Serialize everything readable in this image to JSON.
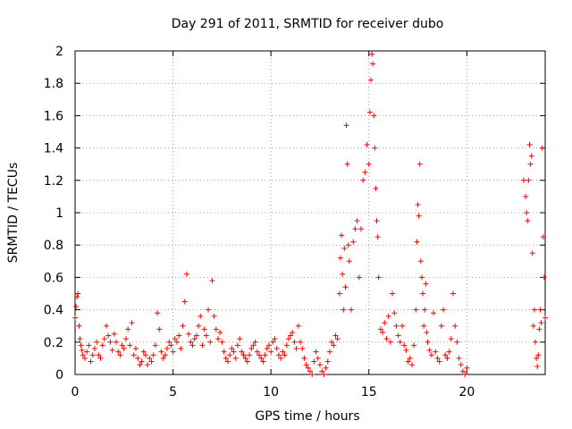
{
  "chart_data": {
    "type": "scatter",
    "title": "Day 291 of 2011, SRMTID for receiver dubo",
    "xlabel": "GPS time / hours",
    "ylabel": "SRMTID / TECUs",
    "xlim": [
      0,
      24
    ],
    "ylim": [
      0,
      2
    ],
    "grid": true,
    "marker": "+",
    "color": "#ff0000",
    "x_ticks": [
      {
        "value": 0,
        "label": "0"
      },
      {
        "value": 5,
        "label": "5"
      },
      {
        "value": 10,
        "label": "10"
      },
      {
        "value": 15,
        "label": "15"
      },
      {
        "value": 20,
        "label": "20"
      }
    ],
    "y_ticks": [
      {
        "value": 0,
        "label": "0"
      },
      {
        "value": 0.2,
        "label": "0.2"
      },
      {
        "value": 0.4,
        "label": "0.4"
      },
      {
        "value": 0.6,
        "label": "0.6"
      },
      {
        "value": 0.8,
        "label": "0.8"
      },
      {
        "value": 1.0,
        "label": "1"
      },
      {
        "value": 1.2,
        "label": "1.2"
      },
      {
        "value": 1.4,
        "label": "1.4"
      },
      {
        "value": 1.6,
        "label": "1.6"
      },
      {
        "value": 1.8,
        "label": "1.8"
      },
      {
        "value": 2.0,
        "label": "2"
      }
    ],
    "series": [
      {
        "name": "SRMTID",
        "x": [
          0.0,
          0.05,
          0.1,
          0.15,
          0.2,
          0.25,
          0.3,
          0.35,
          0.4,
          0.5,
          0.6,
          0.7,
          0.8,
          0.9,
          1.0,
          1.1,
          1.2,
          1.3,
          1.4,
          1.5,
          1.6,
          1.7,
          1.8,
          1.9,
          2.0,
          2.1,
          2.2,
          2.3,
          2.4,
          2.5,
          2.6,
          2.7,
          2.8,
          2.9,
          3.0,
          3.1,
          3.2,
          3.3,
          3.4,
          3.5,
          3.6,
          3.7,
          3.8,
          3.9,
          4.0,
          4.1,
          4.2,
          4.3,
          4.4,
          4.5,
          4.6,
          4.7,
          4.8,
          4.9,
          5.0,
          5.1,
          5.2,
          5.3,
          5.4,
          5.5,
          5.6,
          5.7,
          5.8,
          5.9,
          6.0,
          6.1,
          6.2,
          6.3,
          6.4,
          6.5,
          6.6,
          6.7,
          6.8,
          6.9,
          7.0,
          7.1,
          7.2,
          7.3,
          7.4,
          7.5,
          7.6,
          7.7,
          7.8,
          7.9,
          8.0,
          8.1,
          8.2,
          8.3,
          8.4,
          8.5,
          8.6,
          8.7,
          8.8,
          8.9,
          9.0,
          9.1,
          9.2,
          9.3,
          9.4,
          9.5,
          9.6,
          9.7,
          9.8,
          9.9,
          10.0,
          10.1,
          10.2,
          10.3,
          10.4,
          10.5,
          10.6,
          10.7,
          10.8,
          10.9,
          11.0,
          11.1,
          11.2,
          11.3,
          11.4,
          11.5,
          11.6,
          11.7,
          11.8,
          11.9,
          12.0,
          12.1,
          12.2,
          12.3,
          12.4,
          12.5,
          12.6,
          12.7,
          12.8,
          12.9,
          13.0,
          13.1,
          13.2,
          13.3,
          13.4,
          13.5,
          13.55,
          13.6,
          13.65,
          13.7,
          13.75,
          13.8,
          13.85,
          13.9,
          13.95,
          14.0,
          14.1,
          14.2,
          14.3,
          14.4,
          14.5,
          14.6,
          14.7,
          14.8,
          14.9,
          15.0,
          15.05,
          15.1,
          15.15,
          15.2,
          15.25,
          15.3,
          15.35,
          15.4,
          15.45,
          15.5,
          15.6,
          15.7,
          15.8,
          15.9,
          16.0,
          16.1,
          16.2,
          16.3,
          16.4,
          16.5,
          16.6,
          16.7,
          16.8,
          16.9,
          17.0,
          17.1,
          17.2,
          17.3,
          17.4,
          17.45,
          17.5,
          17.55,
          17.6,
          17.65,
          17.7,
          17.75,
          17.8,
          17.85,
          17.9,
          17.95,
          18.0,
          18.1,
          18.2,
          18.3,
          18.4,
          18.5,
          18.6,
          18.7,
          18.8,
          18.9,
          19.0,
          19.1,
          19.2,
          19.3,
          19.4,
          19.5,
          19.6,
          19.7,
          19.8,
          19.9,
          20.0,
          22.9,
          23.0,
          23.05,
          23.1,
          23.15,
          23.2,
          23.25,
          23.3,
          23.35,
          23.4,
          23.45,
          23.5,
          23.55,
          23.6,
          23.65,
          23.7,
          23.75,
          23.8,
          23.85,
          23.9,
          23.95,
          24.0
        ],
        "y": [
          0.35,
          0.42,
          0.48,
          0.5,
          0.3,
          0.22,
          0.18,
          0.15,
          0.12,
          0.1,
          0.14,
          0.18,
          0.08,
          0.12,
          0.16,
          0.2,
          0.12,
          0.1,
          0.18,
          0.22,
          0.3,
          0.24,
          0.2,
          0.15,
          0.25,
          0.2,
          0.14,
          0.12,
          0.18,
          0.16,
          0.22,
          0.28,
          0.18,
          0.32,
          0.12,
          0.16,
          0.1,
          0.06,
          0.08,
          0.14,
          0.12,
          0.06,
          0.1,
          0.08,
          0.12,
          0.18,
          0.38,
          0.28,
          0.14,
          0.1,
          0.12,
          0.16,
          0.2,
          0.18,
          0.14,
          0.22,
          0.2,
          0.24,
          0.16,
          0.3,
          0.45,
          0.62,
          0.25,
          0.2,
          0.18,
          0.22,
          0.24,
          0.3,
          0.36,
          0.18,
          0.28,
          0.24,
          0.4,
          0.2,
          0.58,
          0.36,
          0.28,
          0.22,
          0.26,
          0.2,
          0.14,
          0.1,
          0.08,
          0.12,
          0.16,
          0.14,
          0.1,
          0.18,
          0.22,
          0.14,
          0.12,
          0.1,
          0.08,
          0.12,
          0.16,
          0.18,
          0.2,
          0.14,
          0.12,
          0.1,
          0.08,
          0.12,
          0.16,
          0.18,
          0.14,
          0.2,
          0.22,
          0.16,
          0.12,
          0.1,
          0.14,
          0.12,
          0.18,
          0.22,
          0.24,
          0.26,
          0.2,
          0.16,
          0.3,
          0.2,
          0.16,
          0.1,
          0.06,
          0.04,
          0.02,
          0.0,
          0.08,
          0.14,
          0.1,
          0.06,
          0.02,
          0.0,
          0.04,
          0.08,
          0.14,
          0.2,
          0.18,
          0.24,
          0.22,
          0.5,
          0.72,
          0.86,
          0.62,
          0.4,
          0.78,
          0.54,
          1.54,
          1.3,
          0.8,
          0.7,
          0.4,
          0.82,
          0.9,
          0.95,
          0.6,
          0.9,
          1.2,
          1.25,
          1.42,
          1.3,
          1.62,
          1.82,
          1.98,
          1.92,
          1.6,
          1.4,
          1.15,
          0.95,
          0.85,
          0.6,
          0.28,
          0.26,
          0.32,
          0.22,
          0.36,
          0.2,
          0.5,
          0.38,
          0.3,
          0.24,
          0.2,
          0.3,
          0.18,
          0.15,
          0.08,
          0.1,
          0.06,
          0.18,
          0.4,
          0.82,
          1.05,
          0.98,
          1.3,
          0.7,
          0.6,
          0.5,
          0.3,
          0.4,
          0.56,
          0.26,
          0.2,
          0.15,
          0.12,
          0.38,
          0.14,
          0.1,
          0.08,
          0.3,
          0.4,
          0.12,
          0.1,
          0.14,
          0.22,
          0.5,
          0.3,
          0.2,
          0.1,
          0.06,
          0.02,
          0.0,
          0.04,
          1.2,
          1.1,
          1.0,
          0.95,
          1.2,
          1.42,
          1.3,
          1.35,
          0.75,
          0.3,
          0.4,
          0.2,
          0.1,
          0.05,
          0.12,
          0.28,
          0.4,
          0.32,
          1.4,
          0.85,
          0.6,
          0.35
        ]
      }
    ]
  }
}
